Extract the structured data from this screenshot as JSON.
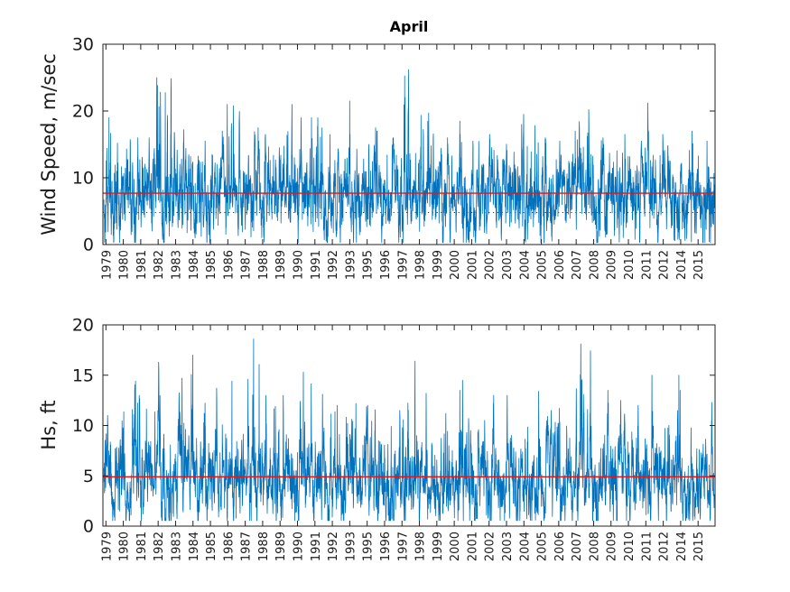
{
  "title": "April",
  "chart_data": [
    {
      "type": "line",
      "name": "wind-speed",
      "title": "April",
      "xlabel": "",
      "ylabel": "Wind Speed, m/sec",
      "ylim": [
        0,
        30
      ],
      "yticks": [
        0,
        10,
        20,
        30
      ],
      "grid": false,
      "legend": "none",
      "categories": [
        "1979",
        "1980",
        "1981",
        "1982",
        "1983",
        "1984",
        "1985",
        "1986",
        "1987",
        "1988",
        "1989",
        "1990",
        "1991",
        "1992",
        "1993",
        "1995",
        "1996",
        "1997",
        "1998",
        "1999",
        "2000",
        "2001",
        "2002",
        "2003",
        "2004",
        "2005",
        "2006",
        "2007",
        "2008",
        "2009",
        "2010",
        "2011",
        "2012",
        "2014",
        "2015"
      ],
      "series": [
        {
          "name": "wind-speed-6hourly",
          "color": "#0072BD",
          "mean": 7.7,
          "annual_peaks": [
            19.0,
            16.0,
            16.0,
            25.0,
            17.2,
            15.5,
            17.0,
            21.0,
            17.5,
            16.5,
            21.0,
            19.0,
            19.0,
            14.0,
            21.5,
            17.5,
            16.0,
            26.2,
            19.7,
            16.0,
            18.5,
            15.5,
            16.5,
            18.0,
            19.5,
            16.0,
            15.5,
            20.2,
            16.0,
            16.5,
            15.5,
            21.2,
            16.5,
            17.0,
            15.5
          ]
        }
      ],
      "ref_lines": [
        {
          "name": "mean-wind-speed-line",
          "value": 7.7,
          "color": "#DE1A16",
          "style": "solid"
        },
        {
          "name": "wind-threshold-line",
          "value": 4.8,
          "color": "#20336E",
          "style": "dotted"
        }
      ],
      "texture": {
        "seed": 11,
        "points_per_year": 116,
        "sd": 3.3,
        "rho": 0.72,
        "floor": 0.3,
        "mean_jitter": 0.4
      }
    },
    {
      "type": "line",
      "name": "hs",
      "title": "",
      "xlabel": "",
      "ylabel": "Hs, ft",
      "ylim": [
        0,
        20
      ],
      "yticks": [
        0,
        5,
        10,
        15,
        20
      ],
      "grid": false,
      "legend": "none",
      "categories": [
        "1979",
        "1980",
        "1981",
        "1982",
        "1983",
        "1984",
        "1985",
        "1986",
        "1987",
        "1988",
        "1989",
        "1990",
        "1991",
        "1992",
        "1993",
        "1995",
        "1996",
        "1997",
        "1998",
        "1999",
        "2000",
        "2001",
        "2002",
        "2003",
        "2004",
        "2005",
        "2006",
        "2007",
        "2008",
        "2009",
        "2010",
        "2011",
        "2012",
        "2014",
        "2015"
      ],
      "series": [
        {
          "name": "hs-6hourly",
          "color": "#0072BD",
          "mean": 4.9,
          "annual_peaks": [
            11.0,
            14.4,
            13.0,
            16.3,
            14.7,
            17.0,
            13.7,
            14.4,
            18.6,
            13.0,
            13.0,
            15.3,
            13.1,
            12.0,
            12.2,
            12.0,
            11.5,
            16.4,
            13.2,
            11.2,
            14.5,
            10.5,
            13.0,
            13.0,
            13.4,
            11.5,
            11.7,
            18.1,
            13.5,
            12.5,
            12.0,
            15.0,
            15.0,
            13.5,
            12.3
          ]
        }
      ],
      "ref_lines": [
        {
          "name": "mean-hs-line",
          "value": 4.9,
          "color": "#DE1A16",
          "style": "solid"
        }
      ],
      "texture": {
        "seed": 77,
        "points_per_year": 116,
        "sd": 2.3,
        "rho": 0.76,
        "floor": 0.55,
        "mean_jitter": 0.3
      }
    }
  ]
}
